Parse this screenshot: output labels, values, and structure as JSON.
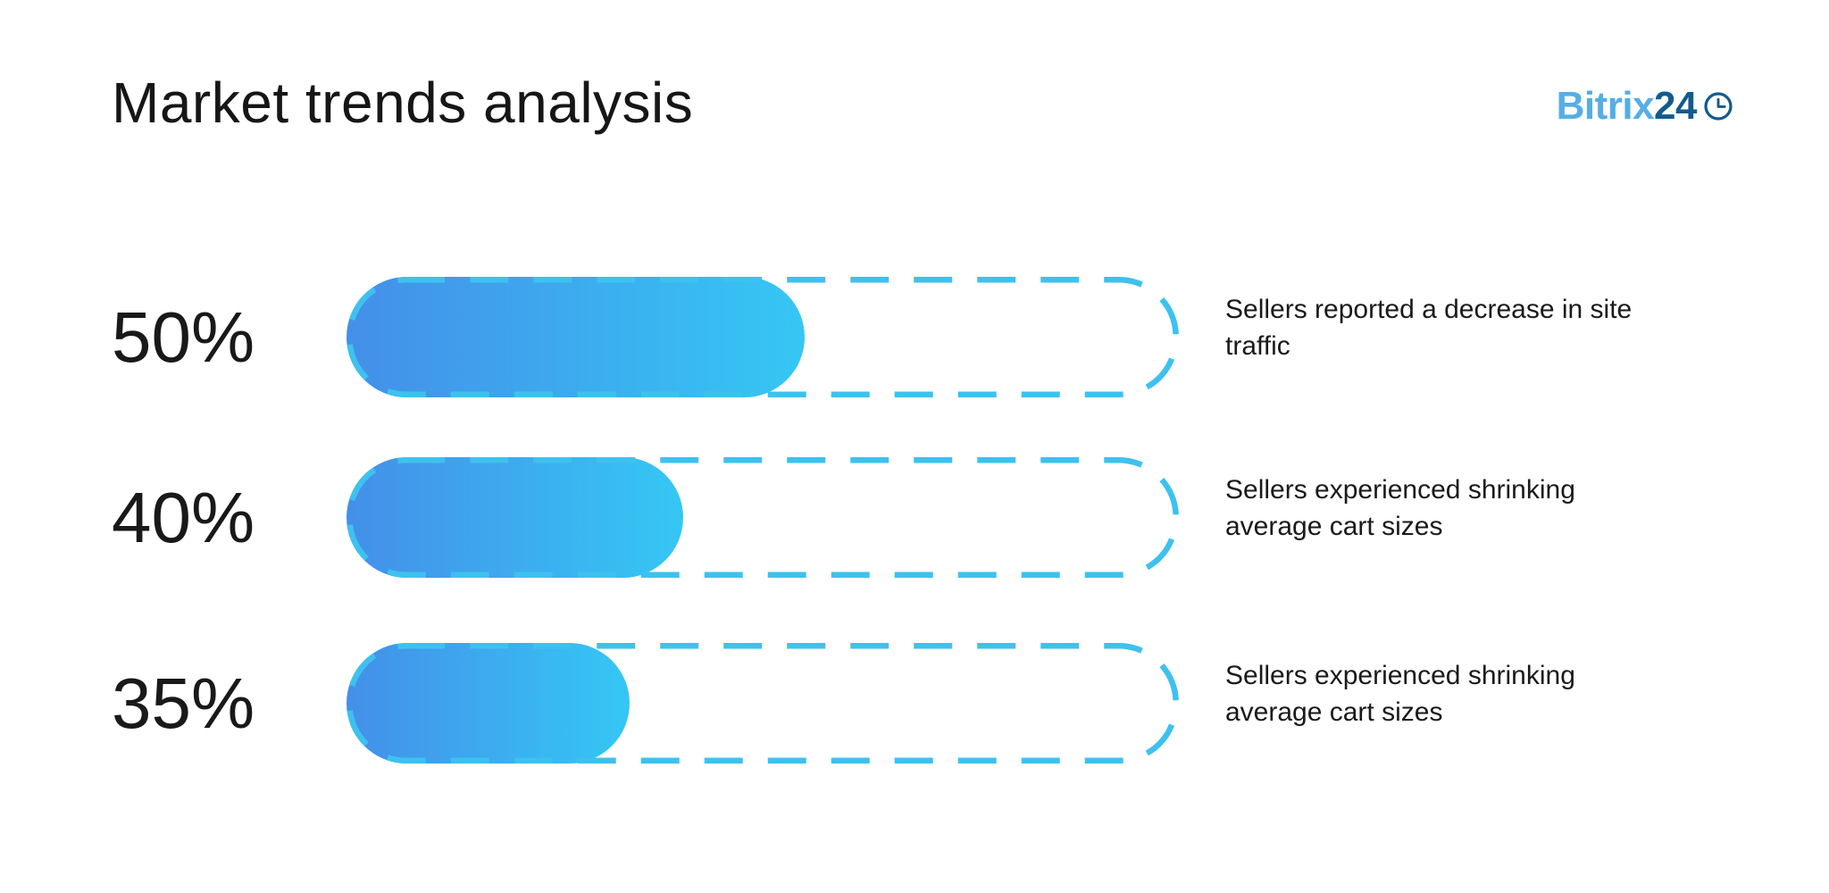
{
  "header": {
    "title": "Market trends analysis"
  },
  "logo": {
    "text_primary": "Bitrix",
    "text_secondary": "24",
    "icon": "clock-icon",
    "color_primary": "#55aee6",
    "color_secondary": "#135b8e"
  },
  "chart_data": {
    "type": "bar",
    "orientation": "horizontal",
    "title": "Market trends analysis",
    "unit": "%",
    "categories": [
      "Sellers reported a decrease in site traffic",
      "Sellers experienced shrinking average cart sizes",
      "Sellers experienced shrinking average cart sizes"
    ],
    "values": [
      50,
      40,
      35
    ],
    "rows": [
      {
        "label": "50%",
        "value": 50,
        "fill_fraction": 0.55,
        "description": "Sellers reported a decrease in site traffic"
      },
      {
        "label": "40%",
        "value": 40,
        "fill_fraction": 0.405,
        "description": "Sellers experienced shrinking average cart sizes"
      },
      {
        "label": "35%",
        "value": 35,
        "fill_fraction": 0.34,
        "description": "Sellers experienced shrinking average cart sizes"
      }
    ],
    "xlim": [
      0,
      100
    ],
    "grid": false,
    "legend": false,
    "colors": {
      "fill_gradient_start": "#448FE9",
      "fill_gradient_end": "#35C7F4",
      "dash_outline": "#3EC1EF",
      "text": "#1a1a1a"
    }
  }
}
